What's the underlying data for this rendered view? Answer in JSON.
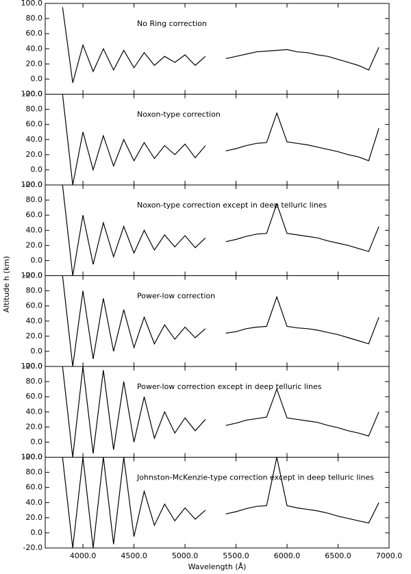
{
  "chart_data": [
    {
      "type": "line",
      "title": "No Ring correction",
      "x": [
        3800,
        3900,
        4000,
        4100,
        4200,
        4300,
        4400,
        4500,
        4600,
        4700,
        4800,
        4900,
        5000,
        5100,
        5200,
        5300,
        5400,
        5500,
        5600,
        5700,
        5800,
        5900,
        6000,
        6100,
        6200,
        6300,
        6400,
        6500,
        6600,
        6700,
        6800,
        6900
      ],
      "values": [
        95,
        -5,
        45,
        10,
        40,
        12,
        38,
        15,
        35,
        18,
        30,
        22,
        32,
        18,
        30,
        null,
        27,
        30,
        33,
        36,
        37,
        38,
        39,
        36,
        35,
        32,
        30,
        26,
        22,
        18,
        12,
        42
      ],
      "color": "#000000",
      "xlim": [
        3630,
        7000
      ],
      "ylim": [
        -20,
        100
      ],
      "yticks": [
        {
          "value": -20,
          "label": "-20.0"
        },
        {
          "value": 0,
          "label": "0.0"
        },
        {
          "value": 20,
          "label": "20.0"
        },
        {
          "value": 40,
          "label": "40.0"
        },
        {
          "value": 60,
          "label": "60.0"
        },
        {
          "value": 80,
          "label": "80.0"
        },
        {
          "value": 100,
          "label": "100.0"
        }
      ]
    },
    {
      "type": "line",
      "title": "Noxon-type correction",
      "x": [
        3800,
        3900,
        4000,
        4100,
        4200,
        4300,
        4400,
        4500,
        4600,
        4700,
        4800,
        4900,
        5000,
        5100,
        5200,
        5300,
        5400,
        5500,
        5600,
        5700,
        5800,
        5900,
        6000,
        6100,
        6200,
        6300,
        6400,
        6500,
        6600,
        6700,
        6800,
        6900
      ],
      "values": [
        100,
        -20,
        50,
        0,
        45,
        5,
        40,
        12,
        36,
        15,
        32,
        20,
        34,
        16,
        32,
        null,
        25,
        28,
        32,
        35,
        36,
        75,
        37,
        35,
        33,
        30,
        27,
        24,
        20,
        17,
        12,
        55
      ],
      "color": "#000000",
      "xlim": [
        3630,
        7000
      ],
      "ylim": [
        -20,
        100
      ],
      "yticks": [
        {
          "value": -20,
          "label": "-20.0"
        },
        {
          "value": 0,
          "label": "0.0"
        },
        {
          "value": 20,
          "label": "20.0"
        },
        {
          "value": 40,
          "label": "40.0"
        },
        {
          "value": 60,
          "label": "60.0"
        },
        {
          "value": 80,
          "label": "80.0"
        },
        {
          "value": 100,
          "label": "100.0"
        }
      ]
    },
    {
      "type": "line",
      "title": "Noxon-type correction except in deep telluric lines",
      "x": [
        3800,
        3900,
        4000,
        4100,
        4200,
        4300,
        4400,
        4500,
        4600,
        4700,
        4800,
        4900,
        5000,
        5100,
        5200,
        5300,
        5400,
        5500,
        5600,
        5700,
        5800,
        5900,
        6000,
        6100,
        6200,
        6300,
        6400,
        6500,
        6600,
        6700,
        6800,
        6900
      ],
      "values": [
        100,
        -20,
        60,
        -5,
        50,
        5,
        45,
        10,
        40,
        14,
        34,
        18,
        33,
        17,
        30,
        null,
        25,
        28,
        32,
        35,
        36,
        75,
        36,
        34,
        32,
        30,
        26,
        23,
        20,
        16,
        12,
        45
      ],
      "color": "#000000",
      "xlim": [
        3630,
        7000
      ],
      "ylim": [
        -20,
        100
      ],
      "yticks": [
        {
          "value": -20,
          "label": "-20.0"
        },
        {
          "value": 0,
          "label": "0.0"
        },
        {
          "value": 20,
          "label": "20.0"
        },
        {
          "value": 40,
          "label": "40.0"
        },
        {
          "value": 60,
          "label": "60.0"
        },
        {
          "value": 80,
          "label": "80.0"
        },
        {
          "value": 100,
          "label": "100.0"
        }
      ]
    },
    {
      "type": "line",
      "title": "Power-low correction",
      "x": [
        3800,
        3900,
        4000,
        4100,
        4200,
        4300,
        4400,
        4500,
        4600,
        4700,
        4800,
        4900,
        5000,
        5100,
        5200,
        5300,
        5400,
        5500,
        5600,
        5700,
        5800,
        5900,
        6000,
        6100,
        6200,
        6300,
        6400,
        6500,
        6600,
        6700,
        6800,
        6900
      ],
      "values": [
        100,
        -20,
        80,
        -10,
        70,
        0,
        55,
        5,
        45,
        10,
        35,
        16,
        32,
        18,
        30,
        null,
        24,
        26,
        30,
        32,
        33,
        72,
        33,
        31,
        30,
        28,
        25,
        22,
        18,
        14,
        10,
        45
      ],
      "color": "#000000",
      "xlim": [
        3630,
        7000
      ],
      "ylim": [
        -20,
        100
      ],
      "yticks": [
        {
          "value": -20,
          "label": "-20.0"
        },
        {
          "value": 0,
          "label": "0.0"
        },
        {
          "value": 20,
          "label": "20.0"
        },
        {
          "value": 40,
          "label": "40.0"
        },
        {
          "value": 60,
          "label": "60.0"
        },
        {
          "value": 80,
          "label": "80.0"
        },
        {
          "value": 100,
          "label": "100.0"
        }
      ]
    },
    {
      "type": "line",
      "title": "Power-low correction except in deep telluric lines",
      "x": [
        3800,
        3900,
        4000,
        4100,
        4200,
        4300,
        4400,
        4500,
        4600,
        4700,
        4800,
        4900,
        5000,
        5100,
        5200,
        5300,
        5400,
        5500,
        5600,
        5700,
        5800,
        5900,
        6000,
        6100,
        6200,
        6300,
        6400,
        6500,
        6600,
        6700,
        6800,
        6900
      ],
      "values": [
        100,
        -20,
        100,
        -15,
        95,
        -10,
        80,
        0,
        60,
        5,
        40,
        12,
        32,
        15,
        30,
        null,
        22,
        25,
        29,
        31,
        33,
        70,
        32,
        30,
        28,
        26,
        22,
        19,
        15,
        12,
        8,
        40
      ],
      "color": "#000000",
      "xlim": [
        3630,
        7000
      ],
      "ylim": [
        -20,
        100
      ],
      "yticks": [
        {
          "value": -20,
          "label": "-20.0"
        },
        {
          "value": 0,
          "label": "0.0"
        },
        {
          "value": 20,
          "label": "20.0"
        },
        {
          "value": 40,
          "label": "40.0"
        },
        {
          "value": 60,
          "label": "60.0"
        },
        {
          "value": 80,
          "label": "80.0"
        },
        {
          "value": 100,
          "label": "100.0"
        }
      ]
    },
    {
      "type": "line",
      "title": "Johnston-McKenzie-type correction except in deep telluric lines",
      "x": [
        3800,
        3900,
        4000,
        4100,
        4200,
        4300,
        4400,
        4500,
        4600,
        4700,
        4800,
        4900,
        5000,
        5100,
        5200,
        5300,
        5400,
        5500,
        5600,
        5700,
        5800,
        5900,
        6000,
        6100,
        6200,
        6300,
        6400,
        6500,
        6600,
        6700,
        6800,
        6900
      ],
      "values": [
        100,
        -20,
        100,
        -20,
        100,
        -15,
        100,
        -5,
        55,
        10,
        38,
        16,
        33,
        18,
        30,
        null,
        25,
        28,
        32,
        35,
        36,
        100,
        36,
        33,
        31,
        29,
        26,
        22,
        19,
        16,
        13,
        40
      ],
      "color": "#000000",
      "xlim": [
        3630,
        7000
      ],
      "ylim": [
        -20,
        100
      ],
      "yticks": [
        {
          "value": -20,
          "label": "-20.0"
        },
        {
          "value": 0,
          "label": "0.0"
        },
        {
          "value": 20,
          "label": "20.0"
        },
        {
          "value": 40,
          "label": "40.0"
        },
        {
          "value": 60,
          "label": "60.0"
        },
        {
          "value": 80,
          "label": "80.0"
        },
        {
          "value": 100,
          "label": "100.0"
        }
      ],
      "xticks": [
        {
          "value": 4000,
          "label": "4000.0"
        },
        {
          "value": 4500,
          "label": "4500.0"
        },
        {
          "value": 5000,
          "label": "5000.0"
        },
        {
          "value": 5500,
          "label": "5500.0"
        },
        {
          "value": 6000,
          "label": "6000.0"
        },
        {
          "value": 6500,
          "label": "6500.0"
        },
        {
          "value": 7000,
          "label": "7000.0"
        }
      ],
      "xlabel": "Wavelength (Å)",
      "ylabel": "Altitude h (km)"
    }
  ]
}
